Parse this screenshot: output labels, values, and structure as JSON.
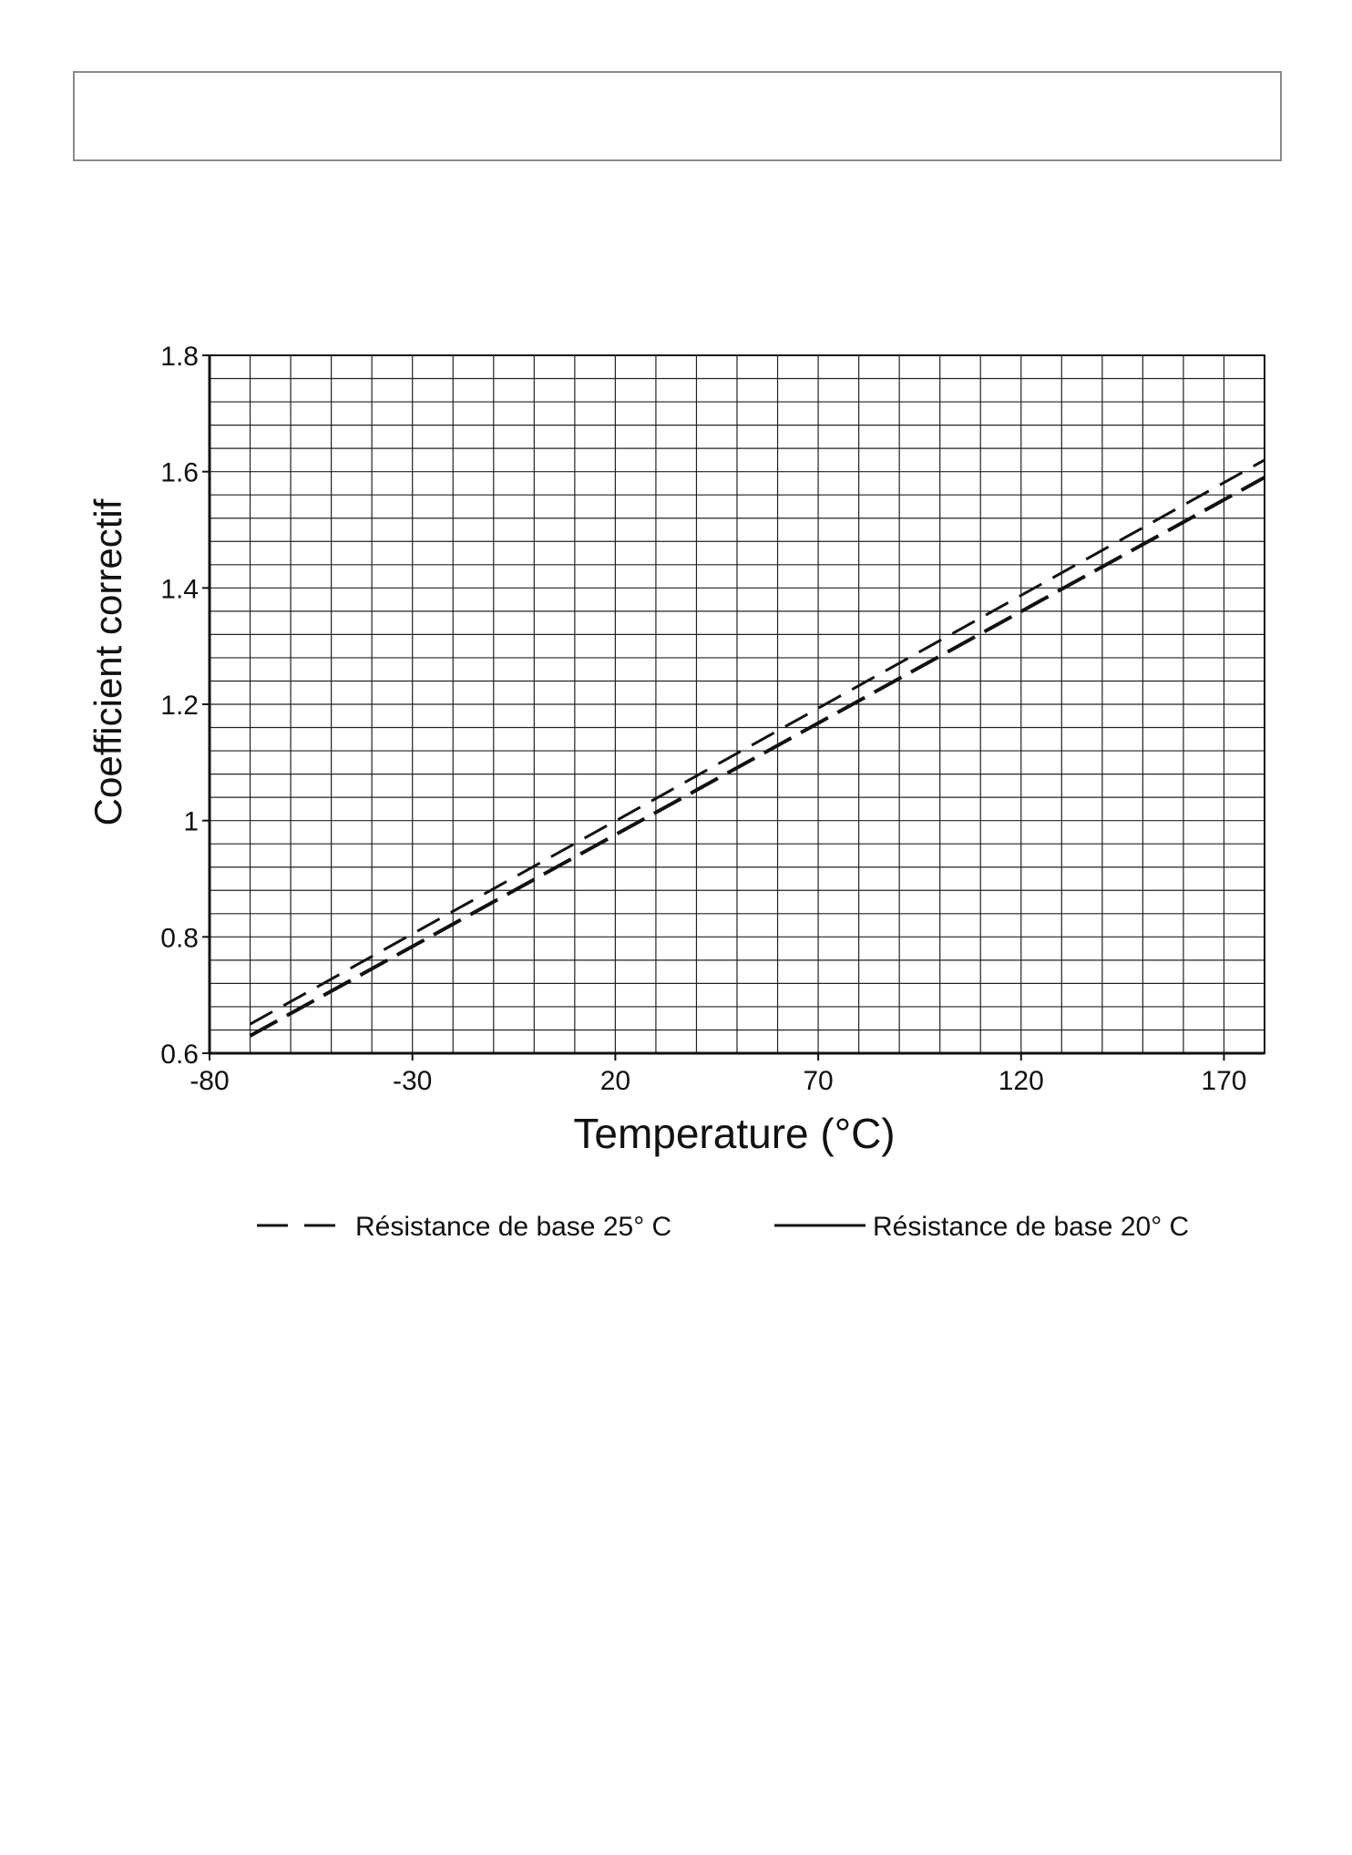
{
  "header": {
    "text": ""
  },
  "chart_data": {
    "type": "line",
    "title": "",
    "xlabel": "Temperature (°C)",
    "ylabel": "Coefficient correctif",
    "xlim": [
      -80,
      180
    ],
    "ylim": [
      0.6,
      1.8
    ],
    "xticks": [
      -80,
      -30,
      20,
      70,
      120,
      170
    ],
    "yticks": [
      0.6,
      0.8,
      1,
      1.2,
      1.4,
      1.6,
      1.8
    ],
    "xtick_labels": [
      "-80",
      "-30",
      "20",
      "70",
      "120",
      "170"
    ],
    "ytick_labels": [
      "0.6",
      "0.8",
      "1",
      "1.2",
      "1.4",
      "1.6",
      "1.8"
    ],
    "grid": true,
    "x_minor_step": 10,
    "y_minor_step": 0.04,
    "legend_position": "bottom",
    "series": [
      {
        "name": "Résistance de base 25° C",
        "style": "long-dash",
        "color": "#111111",
        "x": [
          -70,
          180
        ],
        "y": [
          0.63,
          1.59
        ]
      },
      {
        "name": "Résistance de base 20° C",
        "style": "dash",
        "color": "#111111",
        "x": [
          -70,
          180
        ],
        "y": [
          0.65,
          1.62
        ]
      }
    ]
  }
}
